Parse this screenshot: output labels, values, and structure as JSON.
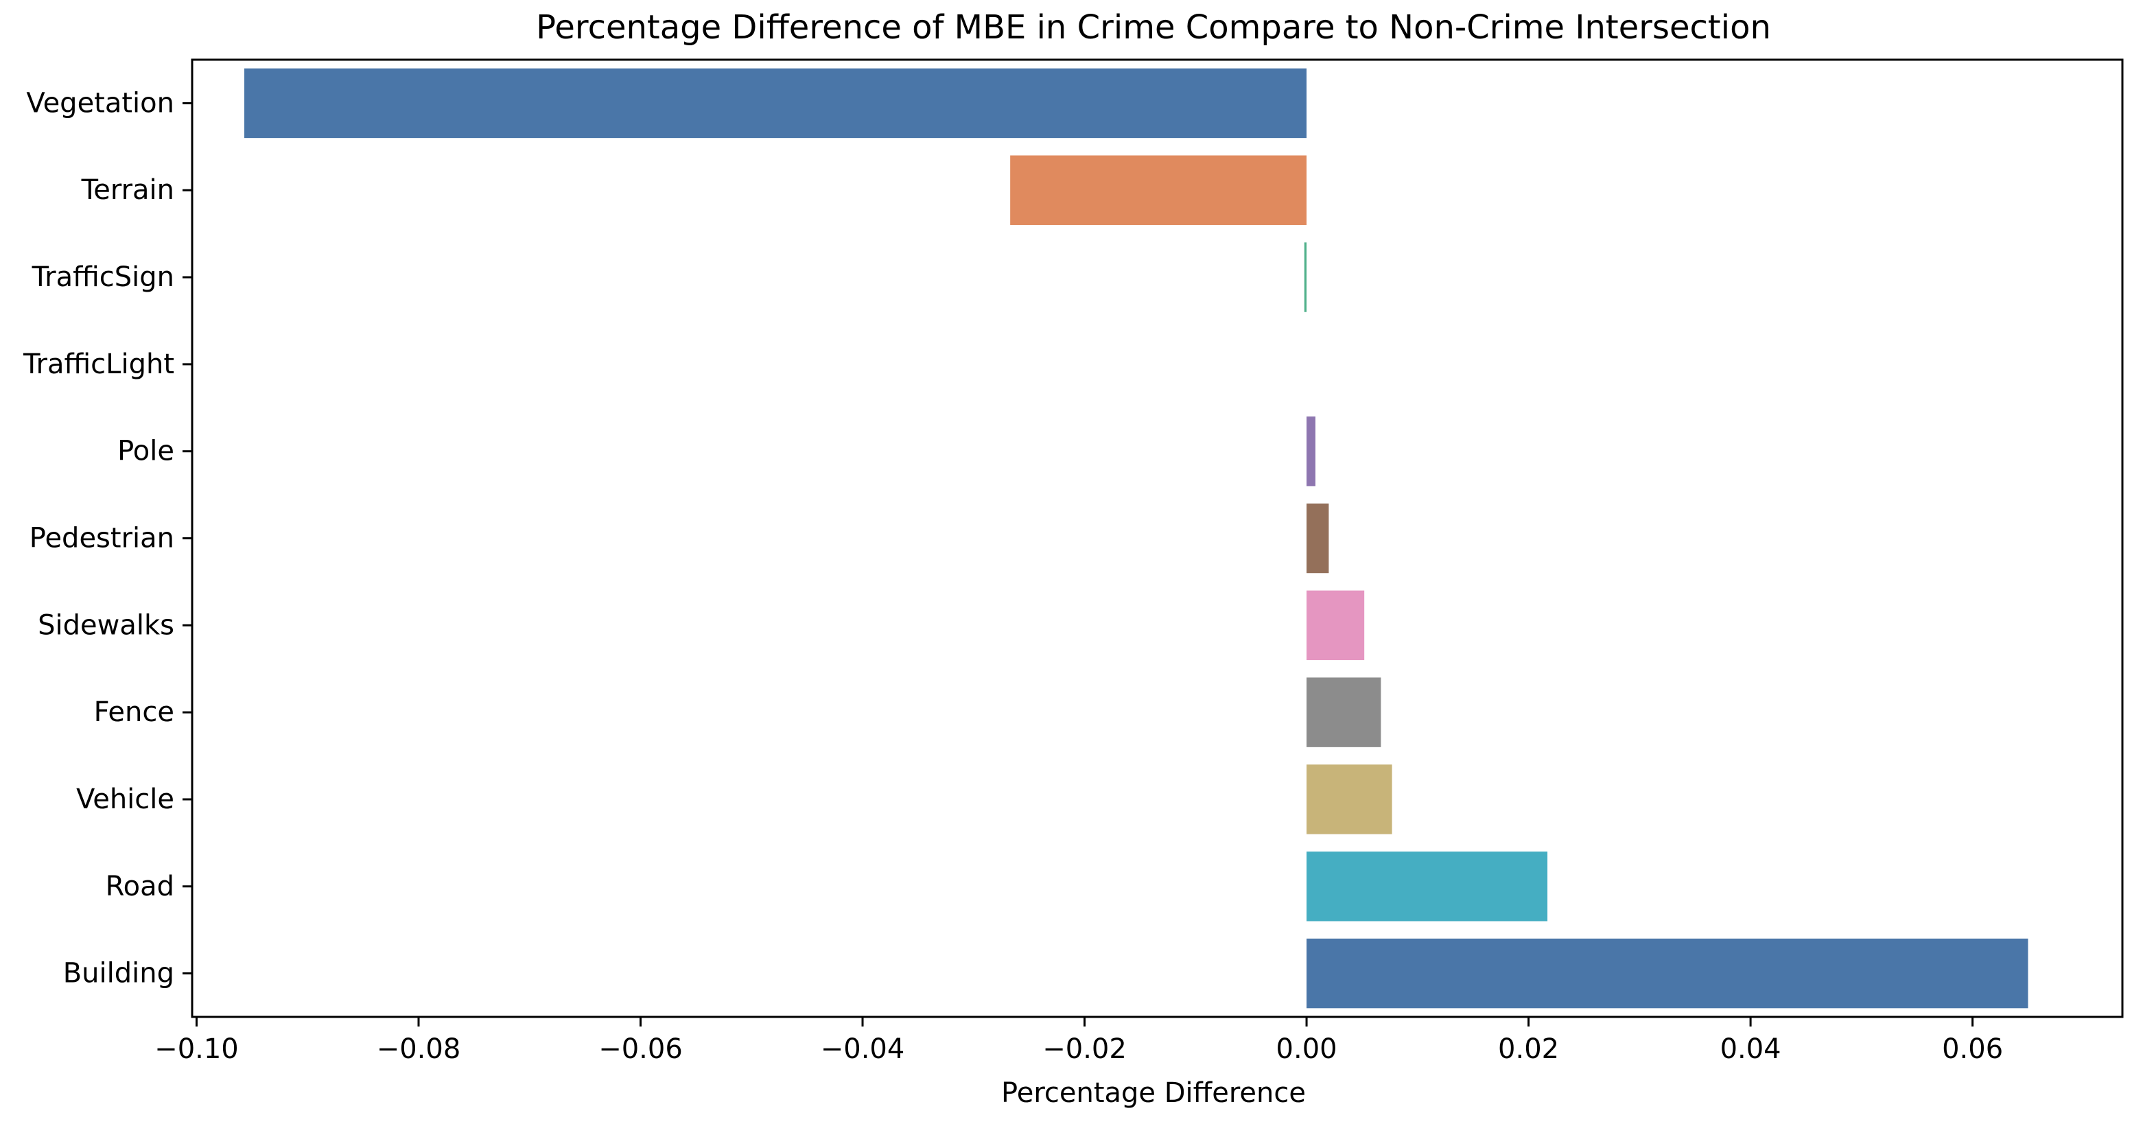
{
  "chart_data": {
    "type": "bar",
    "orientation": "horizontal",
    "title": "Percentage Difference of MBE in Crime Compare to Non-Crime Intersection",
    "xlabel": "Percentage Difference",
    "ylabel": "",
    "xlim": [
      -0.1004,
      0.0735
    ],
    "xticks": [
      "−0.10",
      "−0.08",
      "−0.06",
      "−0.04",
      "−0.02",
      "0.00",
      "0.02",
      "0.04",
      "0.06"
    ],
    "xtick_values": [
      -0.1,
      -0.08,
      -0.06,
      -0.04,
      -0.02,
      0.0,
      0.02,
      0.04,
      0.06
    ],
    "grid": false,
    "legend": "none",
    "categories": [
      "Vegetation",
      "Terrain",
      "TrafficSign",
      "TrafficLight",
      "Pole",
      "Pedestrian",
      "Sidewalks",
      "Fence",
      "Vehicle",
      "Road",
      "Building"
    ],
    "values": [
      -0.0957,
      -0.0267,
      -0.0002,
      0.0,
      0.0008,
      0.002,
      0.0052,
      0.0067,
      0.0077,
      0.0217,
      0.065
    ],
    "colors": [
      "#4a76a8",
      "#e08a5e",
      "#4fb08a",
      "#d8d8d8",
      "#8e76b0",
      "#94705a",
      "#e596c1",
      "#8c8c8c",
      "#c8b479",
      "#45aec2",
      "#4a76a8"
    ]
  }
}
